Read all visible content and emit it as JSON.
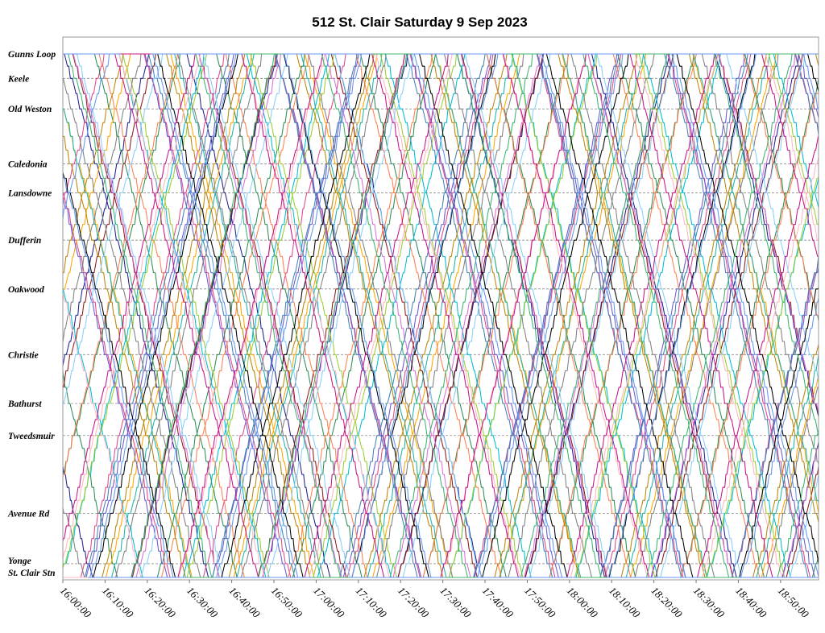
{
  "chart_data": {
    "type": "line",
    "title": "512 St. Clair Saturday 9 Sep 2023",
    "xlabel": "",
    "ylabel": "",
    "xlim": [
      "16:00:00",
      "18:59:00"
    ],
    "x_ticks": [
      "16:00:00",
      "16:10:00",
      "16:20:00",
      "16:30:00",
      "16:40:00",
      "16:50:00",
      "17:00:00",
      "17:10:00",
      "17:20:00",
      "17:30:00",
      "17:40:00",
      "17:50:00",
      "18:00:00",
      "18:10:00",
      "18:20:00",
      "18:30:00",
      "18:40:00",
      "18:50:00"
    ],
    "stops": [
      {
        "name": "Gunns Loop",
        "pos": 0.0
      },
      {
        "name": "Keele",
        "pos": 0.8
      },
      {
        "name": "Old Weston",
        "pos": 1.8
      },
      {
        "name": "Caledonia",
        "pos": 3.6
      },
      {
        "name": "Lansdowne",
        "pos": 4.55
      },
      {
        "name": "Dufferin",
        "pos": 6.1
      },
      {
        "name": "Oakwood",
        "pos": 7.7
      },
      {
        "name": "Christie",
        "pos": 9.85
      },
      {
        "name": "Bathurst",
        "pos": 11.45
      },
      {
        "name": "Tweedsmuir",
        "pos": 12.5
      },
      {
        "name": "Avenue Rd",
        "pos": 15.05
      },
      {
        "name": "Yonge",
        "pos": 16.7
      },
      {
        "name": "St. Clair Stn",
        "pos": 17.15
      }
    ],
    "grid": true,
    "legend": "none",
    "series_colors": [
      "#1f1f8f",
      "#e0478c",
      "#2e8b57",
      "#ffa500",
      "#00bcd4",
      "#8b1a1a",
      "#6a5acd",
      "#ff7f50",
      "#20b2aa",
      "#9acd32",
      "#da70d6",
      "#4682b4",
      "#808080",
      "#b8860b",
      "#ffb6c1",
      "#87cefa",
      "#000000",
      "#c71585",
      "#3cb371",
      "#6495ed"
    ],
    "series": [
      {
        "departures": [
          "15:32",
          "15:46",
          "16:00",
          "16:16",
          "16:29",
          "16:47",
          "17:04",
          "17:19",
          "17:33",
          "17:49",
          "18:05",
          "18:19",
          "18:34",
          "18:50"
        ]
      },
      {
        "departures": [
          "15:35",
          "15:50",
          "16:04",
          "16:19",
          "16:33",
          "16:50",
          "17:07",
          "17:22",
          "17:37",
          "17:52",
          "18:08",
          "18:23",
          "18:38",
          "18:53"
        ]
      },
      {
        "departures": [
          "15:38",
          "15:53",
          "16:07",
          "16:22",
          "16:36",
          "16:54",
          "17:10",
          "17:25",
          "17:40",
          "17:55",
          "18:11",
          "18:26",
          "18:41",
          "18:57"
        ]
      },
      {
        "departures": [
          "15:41",
          "15:56",
          "16:10",
          "16:25",
          "16:40",
          "16:57",
          "17:13",
          "17:28",
          "17:43",
          "17:58",
          "18:14",
          "18:29",
          "18:45"
        ]
      },
      {
        "departures": [
          "15:44",
          "15:59",
          "16:13",
          "16:28",
          "16:43",
          "17:00",
          "17:16",
          "17:31",
          "17:46",
          "18:01",
          "18:17",
          "18:32",
          "18:48"
        ]
      },
      {
        "departures": [
          "15:47",
          "16:02",
          "16:16",
          "16:32",
          "16:46",
          "17:03",
          "17:19",
          "17:34",
          "17:49",
          "18:04",
          "18:20",
          "18:35",
          "18:51"
        ]
      },
      {
        "departures": [
          "15:50",
          "16:05",
          "16:19",
          "16:35",
          "16:50",
          "17:06",
          "17:22",
          "17:37",
          "17:52",
          "18:07",
          "18:23",
          "18:38",
          "18:54"
        ]
      },
      {
        "departures": [
          "15:53",
          "16:08",
          "16:23",
          "16:38",
          "16:53",
          "17:09",
          "17:25",
          "17:40",
          "17:55",
          "18:10",
          "18:26",
          "18:41"
        ]
      },
      {
        "departures": [
          "15:56",
          "16:11",
          "16:26",
          "16:41",
          "16:56",
          "17:12",
          "17:28",
          "17:43",
          "17:58",
          "18:13",
          "18:29",
          "18:44"
        ]
      },
      {
        "departures": [
          "15:59",
          "16:14",
          "16:29",
          "16:44",
          "16:59",
          "17:15",
          "17:31",
          "17:46",
          "18:01",
          "18:16",
          "18:32",
          "18:47"
        ]
      },
      {
        "departures": [
          "16:02",
          "16:17",
          "16:32",
          "16:47",
          "17:02",
          "17:18",
          "17:34",
          "17:49",
          "18:04",
          "18:19",
          "18:35",
          "18:50"
        ]
      },
      {
        "departures": [
          "16:05",
          "16:20",
          "16:35",
          "16:50",
          "17:05",
          "17:21",
          "17:37",
          "17:52",
          "18:07",
          "18:22",
          "18:38",
          "18:53"
        ]
      },
      {
        "departures": [
          "15:30",
          "15:44",
          "15:58",
          "16:12",
          "16:27",
          "16:42",
          "16:58",
          "17:14",
          "17:30",
          "17:45",
          "18:00",
          "18:15",
          "18:31",
          "18:46"
        ]
      },
      {
        "departures": [
          "15:39",
          "15:54",
          "16:09",
          "16:24",
          "16:39",
          "16:55",
          "17:11",
          "17:27",
          "17:42",
          "17:57",
          "18:12",
          "18:28",
          "18:43",
          "18:58"
        ]
      },
      {
        "departures": [
          "15:43",
          "15:58",
          "16:13",
          "16:27",
          "16:42",
          "16:58",
          "17:14",
          "17:29",
          "17:44",
          "18:00",
          "18:15",
          "18:31",
          "18:46"
        ]
      },
      {
        "departures": [
          "15:48",
          "16:03",
          "16:18",
          "16:33",
          "16:48",
          "17:04",
          "17:20",
          "17:35",
          "17:50",
          "18:06",
          "18:21",
          "18:37",
          "18:52"
        ]
      },
      {
        "departures": [
          "15:52",
          "16:07",
          "16:22",
          "16:37",
          "16:52",
          "17:08",
          "17:24",
          "17:39",
          "17:54",
          "18:09",
          "18:25",
          "18:40",
          "18:56"
        ]
      },
      {
        "departures": [
          "15:57",
          "16:12",
          "16:27",
          "16:42",
          "16:57",
          "17:13",
          "17:29",
          "17:44",
          "17:59",
          "18:14",
          "18:30",
          "18:45"
        ]
      },
      {
        "departures": [
          "16:01",
          "16:16",
          "16:31",
          "16:46",
          "17:01",
          "17:17",
          "17:33",
          "17:48",
          "18:03",
          "18:18",
          "18:34",
          "18:49"
        ]
      },
      {
        "departures": [
          "15:36",
          "15:51",
          "16:06",
          "16:21",
          "16:36",
          "16:52",
          "17:08",
          "17:23",
          "17:38",
          "17:53",
          "18:09",
          "18:24",
          "18:40",
          "18:55"
        ]
      }
    ],
    "trip_minutes": 30,
    "layover_minutes": {
      "gunns_loop": 2,
      "st_clair_stn": 3
    }
  }
}
